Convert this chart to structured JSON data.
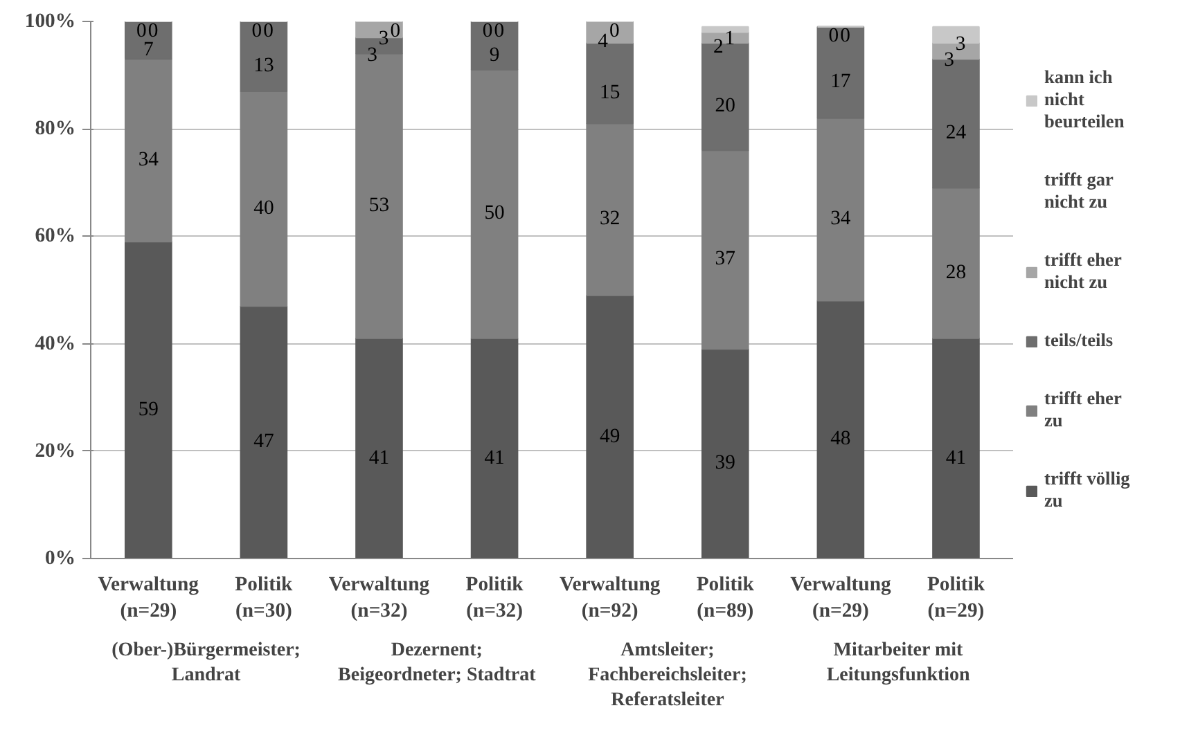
{
  "chart_data": {
    "type": "bar",
    "stacked": true,
    "categories": [
      "Verwaltung\n(n=29)",
      "Politik\n(n=30)",
      "Verwaltung\n(n=32)",
      "Politik\n(n=32)",
      "Verwaltung\n(n=92)",
      "Politik\n(n=89)",
      "Verwaltung\n(n=29)",
      "Politik\n(n=29)"
    ],
    "series": [
      {
        "name": "trifft völlig zu",
        "color": "#595959",
        "values": [
          59,
          47,
          41,
          41,
          49,
          39,
          48,
          41
        ]
      },
      {
        "name": "trifft eher zu",
        "color": "#808080",
        "values": [
          34,
          40,
          53,
          50,
          32,
          37,
          34,
          28
        ]
      },
      {
        "name": "teils/teils",
        "color": "#6e6e6e",
        "values": [
          7,
          13,
          3,
          9,
          15,
          20,
          17,
          24
        ]
      },
      {
        "name": "trifft eher nicht zu",
        "color": "#a6a6a6",
        "values": [
          0,
          0,
          3,
          0,
          4,
          2,
          0,
          3
        ]
      },
      {
        "name": "trifft gar nicht zu",
        "values": [
          null,
          null,
          null,
          null,
          null,
          null,
          null,
          null
        ]
      },
      {
        "name": "kann ich nicht beurteilen",
        "color": "#c8c8c8",
        "values": [
          0,
          0,
          0,
          0,
          0,
          1,
          0,
          3
        ]
      }
    ],
    "ylim": [
      0,
      100
    ],
    "yticks": [
      {
        "value": 0,
        "label": "0%"
      },
      {
        "value": 20,
        "label": "20%"
      },
      {
        "value": 40,
        "label": "40%"
      },
      {
        "value": 60,
        "label": "60%"
      },
      {
        "value": 80,
        "label": "80%"
      },
      {
        "value": 100,
        "label": "100%"
      }
    ],
    "grid": "y",
    "legend": "right",
    "data_labels": true,
    "annotations": [
      "(Ober-)Bürgermeister;\nLandrat",
      "Dezernent;\nBeigeordneter; Stadtrat",
      "Amtsleiter;\nFachbereichsleiter;\nReferatsleiter",
      "Mitarbeiter mit\nLeitungsfunktion"
    ]
  }
}
